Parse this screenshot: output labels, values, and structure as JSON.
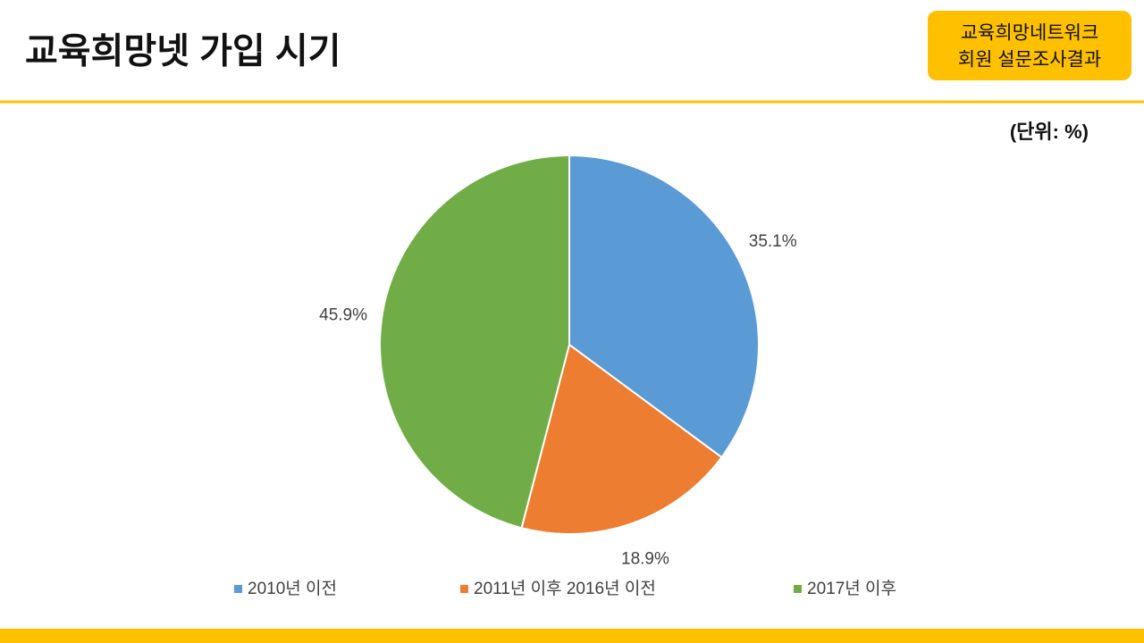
{
  "header": {
    "badge": [
      "교육희망네트워크",
      "회원 설문조사결과"
    ]
  },
  "chart_data": {
    "type": "pie",
    "title": "교육희망넷 가입 시기",
    "unit_note": "(단위: %)",
    "categories": [
      "2010년 이전",
      "2011년 이후 2016년 이전",
      "2017년 이후"
    ],
    "values": [
      35.1,
      18.9,
      45.9
    ],
    "value_labels": [
      "35.1%",
      "18.9%",
      "45.9%"
    ],
    "colors": [
      "#5b9bd5",
      "#ed7d31",
      "#70ad47"
    ],
    "legend": "bottom"
  }
}
